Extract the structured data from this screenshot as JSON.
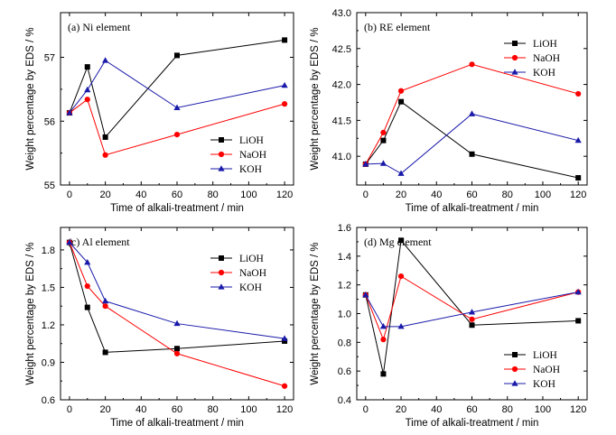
{
  "chart_data": [
    {
      "type": "line",
      "title": "(a) Ni element",
      "xlabel": "Time of alkali-treatment / min",
      "ylabel": "Weight percentage by EDS / %",
      "x": [
        0,
        10,
        20,
        60,
        120
      ],
      "xlim": [
        -5,
        125
      ],
      "ylim": [
        55,
        57.7
      ],
      "xticks": [
        0,
        20,
        40,
        60,
        80,
        100,
        120
      ],
      "xtick_labels": [
        "0",
        "20",
        "40",
        "60",
        "80",
        "100",
        "120"
      ],
      "yticks": [
        55,
        56,
        57
      ],
      "ytick_labels": [
        "55",
        "56",
        "57"
      ],
      "legend": "bottom-right",
      "series": [
        {
          "name": "LiOH",
          "color": "#000000",
          "marker": "square",
          "values": [
            56.13,
            56.85,
            55.75,
            57.03,
            57.27
          ]
        },
        {
          "name": "NaOH",
          "color": "#ff0000",
          "marker": "circle",
          "values": [
            56.13,
            56.34,
            55.47,
            55.79,
            56.27
          ]
        },
        {
          "name": "KOH",
          "color": "#1a1aaa",
          "marker": "triangle",
          "values": [
            56.13,
            56.49,
            56.95,
            56.21,
            56.56
          ]
        }
      ]
    },
    {
      "type": "line",
      "title": "(b) RE element",
      "xlabel": "Time of alkali-treatment / min",
      "ylabel": "Weight percentage by EDS / %",
      "x": [
        0,
        10,
        20,
        60,
        120
      ],
      "xlim": [
        -5,
        125
      ],
      "ylim": [
        40.6,
        43.0
      ],
      "xticks": [
        0,
        20,
        40,
        60,
        80,
        100,
        120
      ],
      "xtick_labels": [
        "0",
        "20",
        "40",
        "60",
        "80",
        "100",
        "120"
      ],
      "yticks": [
        41.0,
        41.5,
        42.0,
        42.5,
        43.0
      ],
      "ytick_labels": [
        "41.0",
        "41.5",
        "42.0",
        "42.5",
        "43.0"
      ],
      "legend": "top-right",
      "series": [
        {
          "name": "LiOH",
          "color": "#000000",
          "marker": "square",
          "values": [
            40.89,
            41.22,
            41.76,
            41.03,
            40.7
          ]
        },
        {
          "name": "NaOH",
          "color": "#ff0000",
          "marker": "circle",
          "values": [
            40.89,
            41.33,
            41.91,
            42.28,
            41.87
          ]
        },
        {
          "name": "KOH",
          "color": "#1a1aaa",
          "marker": "triangle",
          "values": [
            40.89,
            40.9,
            40.76,
            41.59,
            41.22
          ]
        }
      ]
    },
    {
      "type": "line",
      "title": "(c) Al element",
      "xlabel": "Time of alkali-treatment / min",
      "ylabel": "Weight percentage by EDS / %",
      "x": [
        0,
        10,
        20,
        60,
        120
      ],
      "xlim": [
        -5,
        125
      ],
      "ylim": [
        0.6,
        1.98
      ],
      "xticks": [
        0,
        20,
        40,
        60,
        80,
        100,
        120
      ],
      "xtick_labels": [
        "0",
        "20",
        "40",
        "60",
        "80",
        "100",
        "120"
      ],
      "yticks": [
        0.6,
        0.9,
        1.2,
        1.5,
        1.8
      ],
      "ytick_labels": [
        "0.6",
        "0.9",
        "1.2",
        "1.5",
        "1.8"
      ],
      "legend": "top-right",
      "series": [
        {
          "name": "LiOH",
          "color": "#000000",
          "marker": "square",
          "values": [
            1.86,
            1.34,
            0.98,
            1.01,
            1.07
          ]
        },
        {
          "name": "NaOH",
          "color": "#ff0000",
          "marker": "circle",
          "values": [
            1.86,
            1.51,
            1.35,
            0.97,
            0.71
          ]
        },
        {
          "name": "KOH",
          "color": "#1a1aaa",
          "marker": "triangle",
          "values": [
            1.86,
            1.7,
            1.39,
            1.21,
            1.09
          ]
        }
      ]
    },
    {
      "type": "line",
      "title": "(d) Mg element",
      "xlabel": "Time of alkali-treatment / min",
      "ylabel": "Weight percentage by EDS / %",
      "x": [
        0,
        10,
        20,
        60,
        120
      ],
      "xlim": [
        -5,
        125
      ],
      "ylim": [
        0.4,
        1.6
      ],
      "xticks": [
        0,
        20,
        40,
        60,
        80,
        100,
        120
      ],
      "xtick_labels": [
        "0",
        "20",
        "40",
        "60",
        "80",
        "100",
        "120"
      ],
      "yticks": [
        0.4,
        0.6,
        0.8,
        1.0,
        1.2,
        1.4,
        1.6
      ],
      "ytick_labels": [
        "0.4",
        "0.6",
        "0.8",
        "1.0",
        "1.2",
        "1.4",
        "1.6"
      ],
      "legend": "bottom-right",
      "series": [
        {
          "name": "LiOH",
          "color": "#000000",
          "marker": "square",
          "values": [
            1.13,
            0.58,
            1.51,
            0.92,
            0.95
          ]
        },
        {
          "name": "NaOH",
          "color": "#ff0000",
          "marker": "circle",
          "values": [
            1.13,
            0.82,
            1.26,
            0.96,
            1.15
          ]
        },
        {
          "name": "KOH",
          "color": "#1a1aaa",
          "marker": "triangle",
          "values": [
            1.13,
            0.91,
            0.91,
            1.01,
            1.15
          ]
        }
      ]
    }
  ]
}
